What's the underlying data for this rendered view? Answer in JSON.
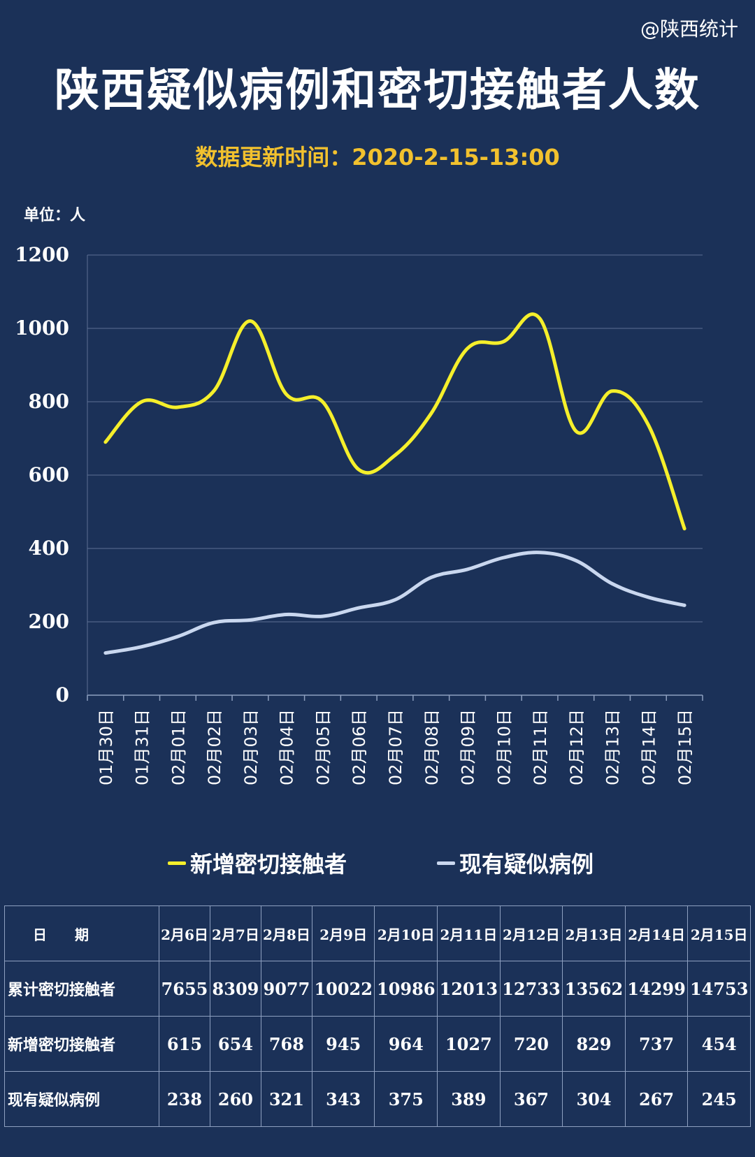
{
  "watermark": "@陕西统计",
  "title": "陕西疑似病例和密切接触者人数",
  "update_time": "数据更新时间：2020-2-15-13:00",
  "unit_label": "单位：人",
  "chart_data": {
    "type": "line",
    "categories": [
      "01月30日",
      "01月31日",
      "02月01日",
      "02月02日",
      "02月03日",
      "02月04日",
      "02月05日",
      "02月06日",
      "02月07日",
      "02月08日",
      "02月09日",
      "02月10日",
      "02月11日",
      "02月12日",
      "02月13日",
      "02月14日",
      "02月15日"
    ],
    "series": [
      {
        "name": "新增密切接触者",
        "color": "#f5ef2b",
        "values": [
          690,
          800,
          785,
          830,
          1020,
          820,
          800,
          615,
          654,
          768,
          945,
          964,
          1027,
          720,
          829,
          737,
          454
        ]
      },
      {
        "name": "现有疑似病例",
        "color": "#c9d7ef",
        "values": [
          115,
          132,
          160,
          198,
          205,
          220,
          215,
          238,
          260,
          321,
          343,
          375,
          389,
          367,
          304,
          267,
          245
        ]
      }
    ],
    "ylim": [
      0,
      1200
    ],
    "yticks": [
      0,
      200,
      400,
      600,
      800,
      1000,
      1200
    ],
    "grid": true,
    "legend": "bottom"
  },
  "table": {
    "header": [
      "日　　期",
      "2月6日",
      "2月7日",
      "2月8日",
      "2月9日",
      "2月10日",
      "2月11日",
      "2月12日",
      "2月13日",
      "2月14日",
      "2月15日"
    ],
    "rows": [
      {
        "label": "累计密切接触者",
        "values": [
          "7655",
          "8309",
          "9077",
          "10022",
          "10986",
          "12013",
          "12733",
          "13562",
          "14299",
          "14753"
        ]
      },
      {
        "label": "新增密切接触者",
        "values": [
          "615",
          "654",
          "768",
          "945",
          "964",
          "1027",
          "720",
          "829",
          "737",
          "454"
        ]
      },
      {
        "label": "现有疑似病例",
        "values": [
          "238",
          "260",
          "321",
          "343",
          "375",
          "389",
          "367",
          "304",
          "267",
          "245"
        ]
      }
    ]
  }
}
